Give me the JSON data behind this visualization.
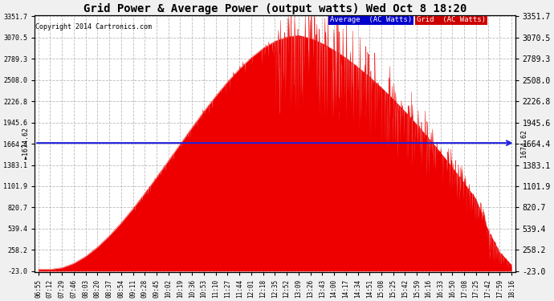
{
  "title": "Grid Power & Average Power (output watts) Wed Oct 8 18:20",
  "copyright": "Copyright 2014 Cartronics.com",
  "yticks": [
    3351.7,
    3070.5,
    2789.3,
    2508.0,
    2226.8,
    1945.6,
    1664.4,
    1383.1,
    1101.9,
    820.7,
    539.4,
    258.2,
    -23.0
  ],
  "ymin": -23.0,
  "ymax": 3351.7,
  "average_line_y": 1674.62,
  "average_label": "1674.62",
  "fill_color": "#ee0000",
  "avg_line_color": "#2222dd",
  "background_color": "#ffffff",
  "fig_bg_color": "#f0f0f0",
  "grid_color": "#aaaaaa",
  "legend_avg_color": "#0000cc",
  "legend_grid_color": "#cc0000",
  "legend_avg_label": "Average  (AC Watts)",
  "legend_grid_label": "Grid  (AC Watts)",
  "xtick_labels": [
    "06:55",
    "07:12",
    "07:29",
    "07:46",
    "08:03",
    "08:20",
    "08:37",
    "08:54",
    "09:11",
    "09:28",
    "09:45",
    "10:02",
    "10:19",
    "10:36",
    "10:53",
    "11:10",
    "11:27",
    "11:44",
    "12:01",
    "12:18",
    "12:35",
    "12:52",
    "13:09",
    "13:26",
    "13:43",
    "14:00",
    "14:17",
    "14:34",
    "14:51",
    "15:08",
    "15:25",
    "15:42",
    "15:59",
    "16:16",
    "16:33",
    "16:50",
    "17:08",
    "17:25",
    "17:42",
    "17:59",
    "18:16"
  ]
}
